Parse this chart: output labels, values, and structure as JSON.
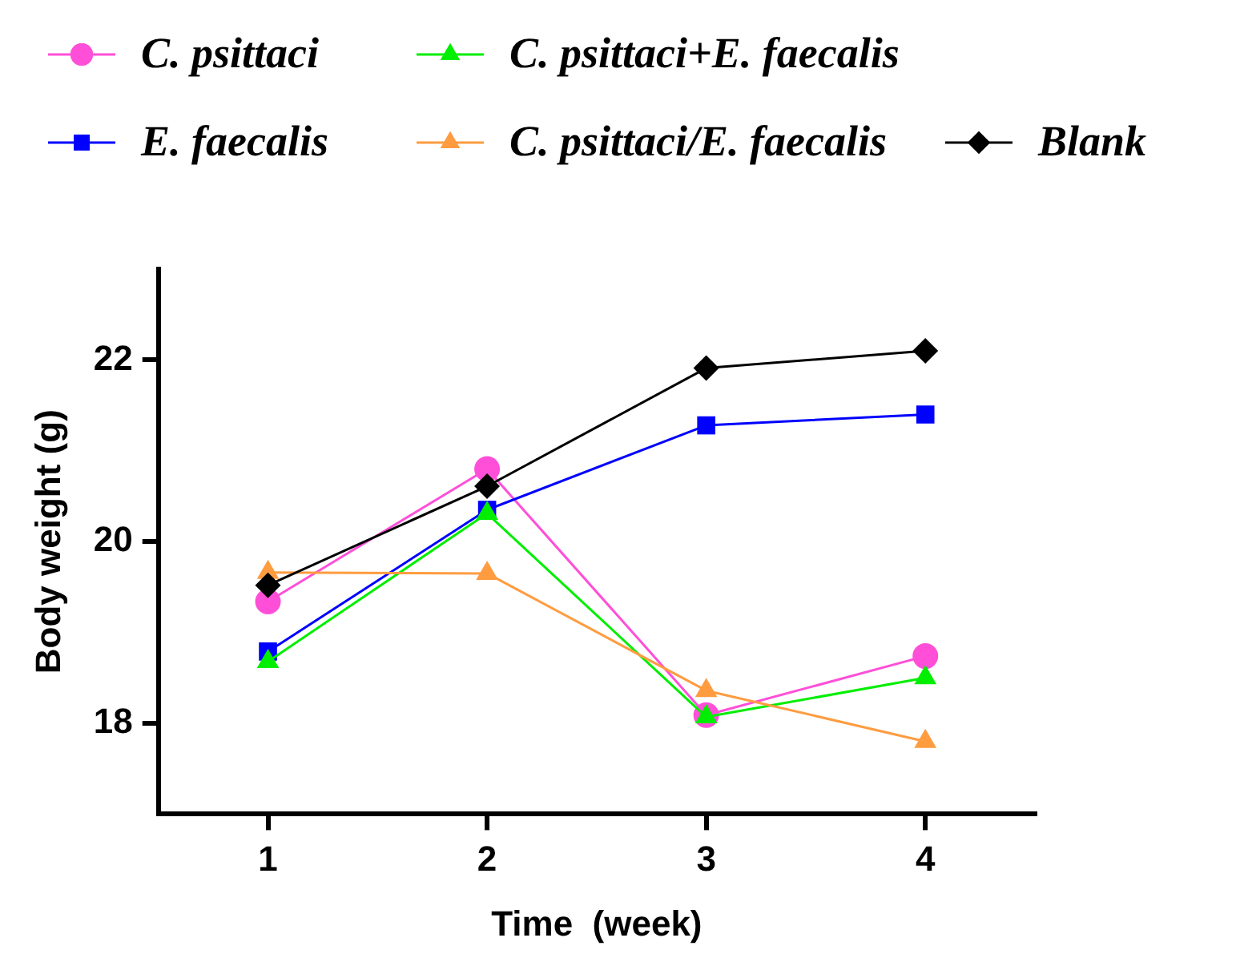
{
  "chart_data": {
    "type": "line",
    "xlabel": "Time  (week)",
    "ylabel": "Body weight (g)",
    "x": [
      1,
      2,
      3,
      4
    ],
    "xlim": [
      0.5,
      4.5
    ],
    "xticks": [
      1,
      2,
      3,
      4
    ],
    "ylim": [
      17,
      23
    ],
    "yticks": [
      18,
      20,
      22
    ],
    "grid": false,
    "legend": "top",
    "line_style": "solid",
    "series": [
      {
        "name": "C. psittaci",
        "color": "#ff4fd8",
        "marker": "circle",
        "values": [
          19.34,
          20.8,
          18.09,
          18.74
        ]
      },
      {
        "name": "E. faecalis",
        "color": "#0000ff",
        "marker": "square",
        "values": [
          18.79,
          20.35,
          21.28,
          21.4
        ]
      },
      {
        "name": "C. psittaci+E. faecalis",
        "color": "#00ee00",
        "marker": "triangle",
        "values": [
          18.68,
          20.31,
          18.07,
          18.5
        ]
      },
      {
        "name": "C. psittaci/E. faecalis",
        "color": "#ff9c40",
        "marker": "triangle",
        "values": [
          19.66,
          19.65,
          18.36,
          17.8
        ]
      },
      {
        "name": "Blank",
        "color": "#000000",
        "marker": "diamond",
        "values": [
          19.52,
          20.61,
          21.91,
          22.1
        ]
      }
    ]
  }
}
